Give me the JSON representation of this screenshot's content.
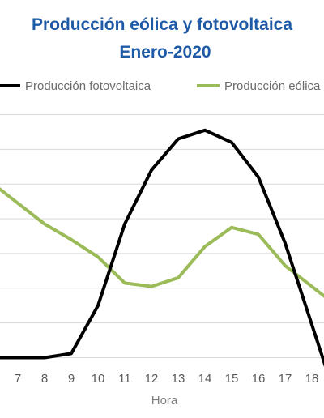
{
  "chart_data": {
    "type": "line",
    "title": "Producción eólica y fotovoltaica",
    "subtitle": "Enero-2020",
    "xlabel": "Hora",
    "ylabel": "",
    "x": [
      7,
      8,
      9,
      10,
      11,
      12,
      13,
      14,
      15,
      16,
      17,
      18
    ],
    "ylim": [
      0,
      7
    ],
    "grid": true,
    "legend_position": "top",
    "series": [
      {
        "name": "Producción fotovoltaica",
        "color": "#000000",
        "values": [
          0.0,
          0.0,
          0.12,
          1.5,
          3.85,
          5.4,
          6.3,
          6.55,
          6.2,
          5.2,
          3.3,
          0.95
        ]
      },
      {
        "name": "Producción eólica",
        "color": "#9bbb59",
        "values": [
          4.45,
          3.85,
          3.4,
          2.9,
          2.15,
          2.05,
          2.3,
          3.2,
          3.75,
          3.55,
          2.65,
          2.05
        ]
      }
    ]
  }
}
